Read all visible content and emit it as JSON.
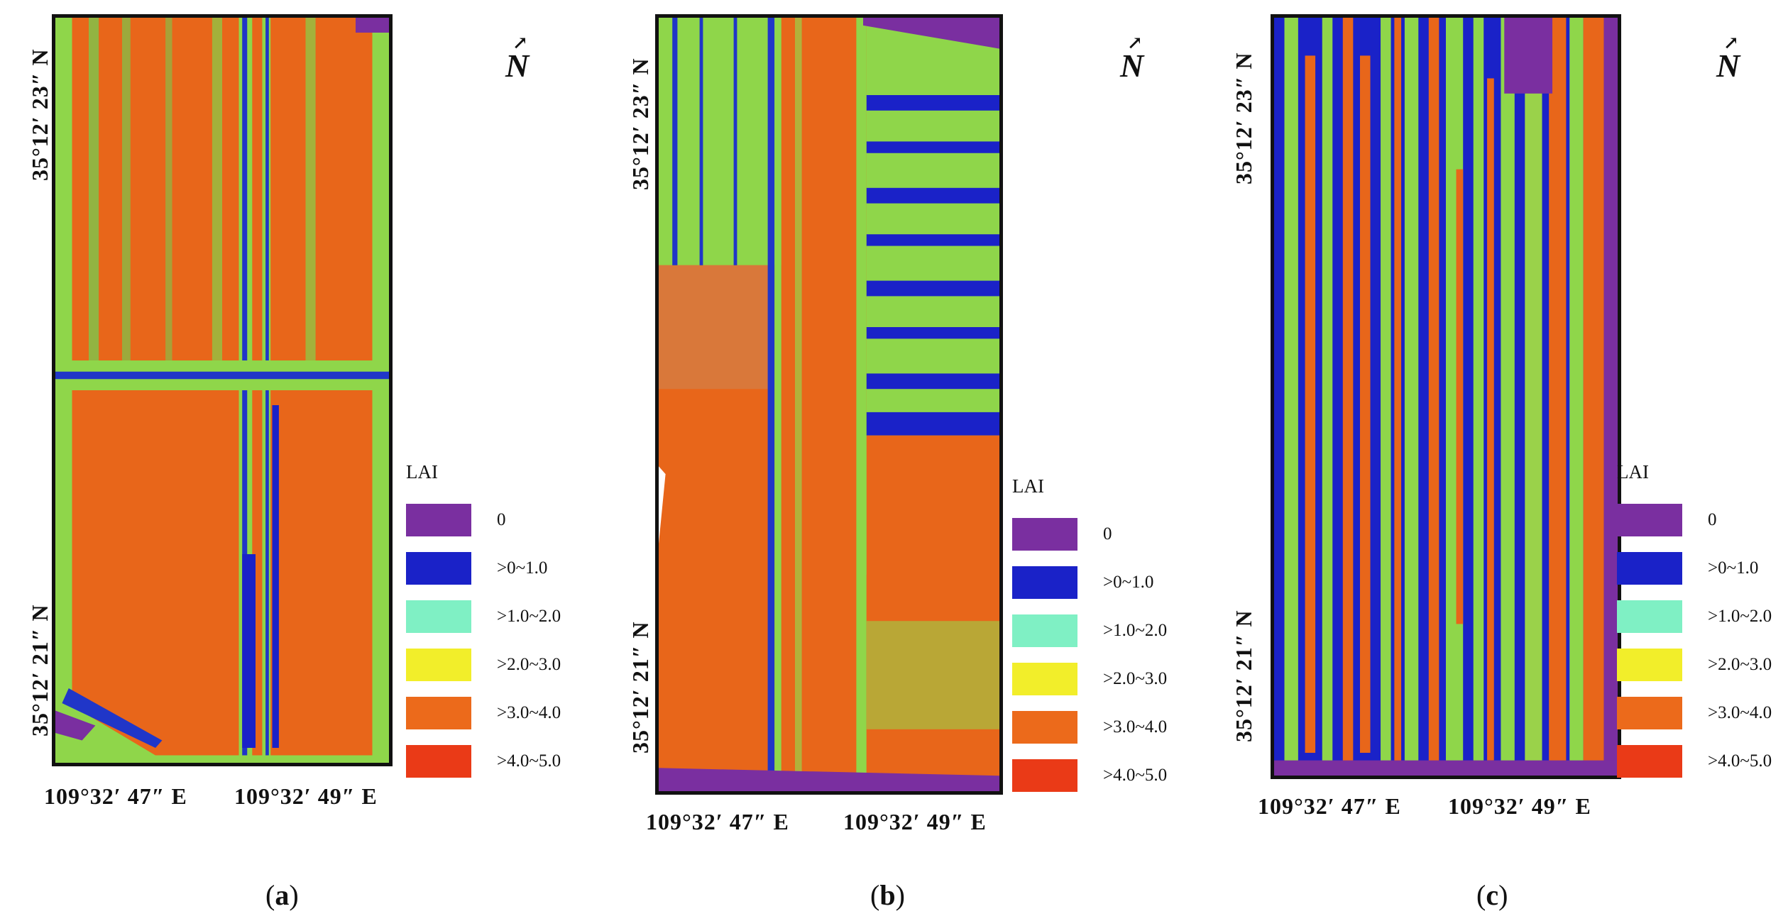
{
  "legend": {
    "title": "LAI",
    "classes": [
      {
        "label": "0",
        "color": "#7a2fa0"
      },
      {
        "label": ">0~1.0",
        "color": "#1a22c8"
      },
      {
        "label": ">1.0~2.0",
        "color": "#7ff0c4"
      },
      {
        "label": ">2.0~3.0",
        "color": "#f2ee2a"
      },
      {
        "label": ">3.0~4.0",
        "color": "#ec6a1b"
      },
      {
        "label": ">4.0~5.0",
        "color": "#ea3a17"
      }
    ]
  },
  "panels": [
    {
      "id": "a",
      "caption_open": "(",
      "caption_letter": "a",
      "caption_close": ")",
      "lat_top": "35°12′ 23″ N",
      "lat_bottom": "35°12′ 21″ N",
      "lon_left": "109°32′ 47″ E",
      "lon_right": "109°32′ 49″ E",
      "north": "N"
    },
    {
      "id": "b",
      "caption_open": "(",
      "caption_letter": "b",
      "caption_close": ")",
      "lat_top": "35°12′ 23″ N",
      "lat_bottom": "35°12′ 21″ N",
      "lon_left": "109°32′ 47″ E",
      "lon_right": "109°32′ 49″ E",
      "north": "N"
    },
    {
      "id": "c",
      "caption_open": "(",
      "caption_letter": "c",
      "caption_close": ")",
      "lat_top": "35°12′ 23″ N",
      "lat_bottom": "35°12′ 21″ N",
      "lon_left": "109°32′ 47″ E",
      "lon_right": "109°32′ 49″ E",
      "north": "N"
    }
  ]
}
